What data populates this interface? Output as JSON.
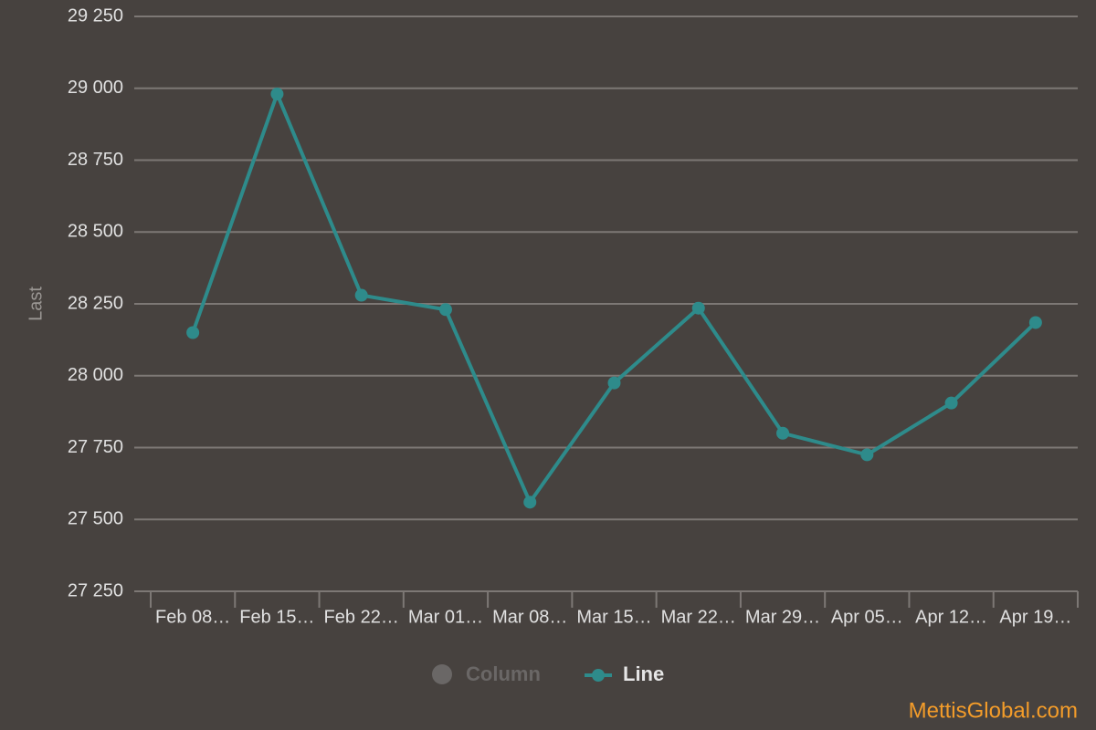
{
  "chart_data": {
    "type": "line",
    "y_label": "Last",
    "categories": [
      "Feb 08…",
      "Feb 15…",
      "Feb 22…",
      "Mar 01…",
      "Mar 08…",
      "Mar 15…",
      "Mar 22…",
      "Mar 29…",
      "Apr 05…",
      "Apr 12…",
      "Apr 19…"
    ],
    "series": [
      {
        "name": "Line",
        "color": "#2e8b8b",
        "values": [
          28150,
          28980,
          28280,
          28230,
          27560,
          27975,
          28235,
          27800,
          27725,
          27905,
          28185
        ]
      }
    ],
    "legend_hidden": [
      {
        "name": "Column",
        "color": "#6a6766"
      }
    ],
    "ylim": [
      27250,
      29250
    ],
    "yticks": [
      {
        "value": 27250,
        "label": "27 250"
      },
      {
        "value": 27500,
        "label": "27 500"
      },
      {
        "value": 27750,
        "label": "27 750"
      },
      {
        "value": 28000,
        "label": "28 000"
      },
      {
        "value": 28250,
        "label": "28 250"
      },
      {
        "value": 28500,
        "label": "28 500"
      },
      {
        "value": 28750,
        "label": "28 750"
      },
      {
        "value": 29000,
        "label": "29 000"
      },
      {
        "value": 29250,
        "label": "29 250"
      }
    ],
    "grid": true,
    "source": "MettisGlobal.com"
  }
}
